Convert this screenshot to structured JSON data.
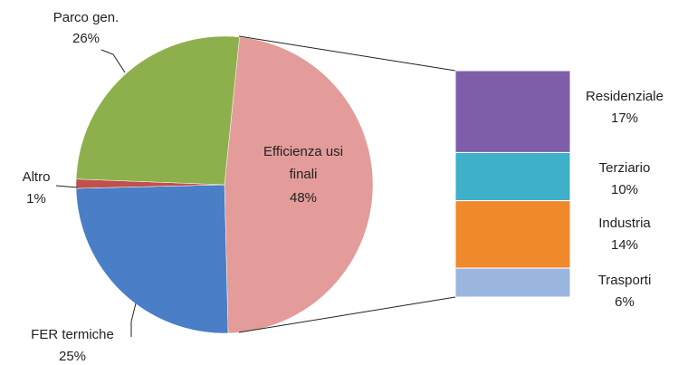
{
  "chart_data": {
    "type": "pie",
    "categories": [
      "Efficienza usi finali",
      "FER termiche",
      "Altro",
      "Parco gen."
    ],
    "values": [
      48,
      25,
      1,
      26
    ],
    "value_labels": [
      "48%",
      "25%",
      "1%",
      "26%"
    ],
    "colors": [
      "#e39c9a",
      "#4a7ec6",
      "#c0504d",
      "#8db04c"
    ],
    "breakdown": {
      "type": "bar",
      "categories": [
        "Residenziale",
        "Terziario",
        "Industria",
        "Trasporti"
      ],
      "values": [
        17,
        10,
        14,
        6
      ],
      "value_labels": [
        "17%",
        "10%",
        "14%",
        "6%"
      ],
      "colors": [
        "#7f5ea9",
        "#3eb0c7",
        "#f0892c",
        "#9bb6de"
      ]
    }
  }
}
